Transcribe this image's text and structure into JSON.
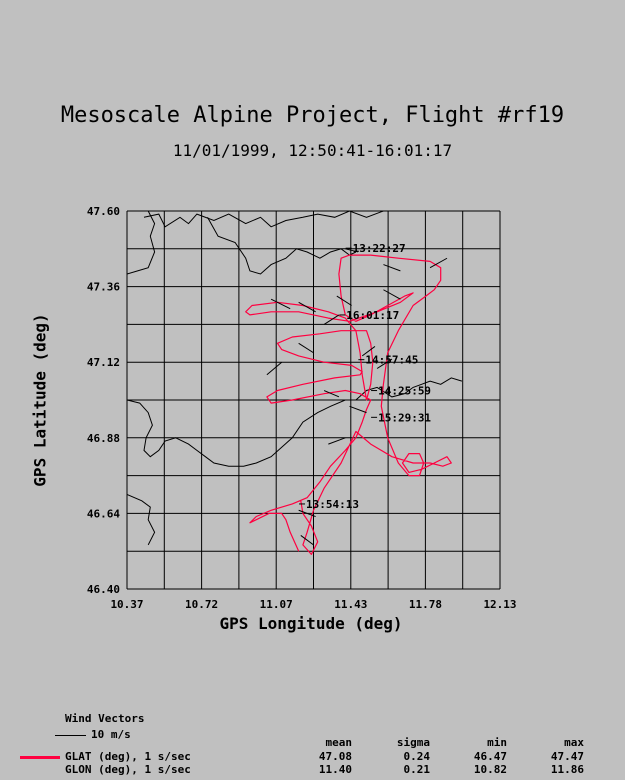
{
  "title": "Mesoscale Alpine Project, Flight #rf19",
  "subtitle": "11/01/1999, 12:50:41-16:01:17",
  "chart_data": {
    "type": "line",
    "xlabel": "GPS Longitude (deg)",
    "ylabel": "GPS Latitude (deg)",
    "xlim": [
      10.37,
      12.13
    ],
    "ylim": [
      46.4,
      47.6
    ],
    "xticks": [
      "10.37",
      "10.72",
      "11.07",
      "11.43",
      "11.78",
      "12.13"
    ],
    "yticks": [
      "46.40",
      "46.64",
      "46.88",
      "47.12",
      "47.36",
      "47.60"
    ],
    "grid": true,
    "track_color": "#ff0040",
    "track": [
      [
        11.18,
        46.52
      ],
      [
        11.14,
        46.58
      ],
      [
        11.12,
        46.62
      ],
      [
        11.1,
        46.64
      ],
      [
        11.04,
        46.64
      ],
      [
        10.98,
        46.62
      ],
      [
        10.95,
        46.61
      ],
      [
        10.98,
        46.63
      ],
      [
        11.05,
        46.65
      ],
      [
        11.15,
        46.67
      ],
      [
        11.22,
        46.69
      ],
      [
        11.28,
        46.74
      ],
      [
        11.33,
        46.79
      ],
      [
        11.4,
        46.84
      ],
      [
        11.45,
        46.88
      ],
      [
        11.48,
        46.93
      ],
      [
        11.5,
        46.97
      ],
      [
        11.52,
        47.0
      ],
      [
        11.47,
        47.02
      ],
      [
        11.4,
        47.03
      ],
      [
        11.3,
        47.02
      ],
      [
        11.15,
        47.0
      ],
      [
        11.05,
        46.99
      ],
      [
        11.03,
        47.01
      ],
      [
        11.08,
        47.03
      ],
      [
        11.2,
        47.05
      ],
      [
        11.35,
        47.07
      ],
      [
        11.47,
        47.08
      ],
      [
        11.48,
        47.09
      ],
      [
        11.43,
        47.11
      ],
      [
        11.3,
        47.12
      ],
      [
        11.18,
        47.14
      ],
      [
        11.1,
        47.16
      ],
      [
        11.08,
        47.18
      ],
      [
        11.15,
        47.2
      ],
      [
        11.28,
        47.21
      ],
      [
        11.38,
        47.22
      ],
      [
        11.45,
        47.22
      ],
      [
        11.5,
        47.22
      ],
      [
        11.52,
        47.18
      ],
      [
        11.53,
        47.12
      ],
      [
        11.52,
        47.05
      ],
      [
        11.5,
        47.0
      ],
      [
        11.48,
        47.08
      ],
      [
        11.47,
        47.15
      ],
      [
        11.45,
        47.22
      ],
      [
        11.4,
        47.26
      ],
      [
        11.32,
        47.28
      ],
      [
        11.2,
        47.3
      ],
      [
        11.08,
        47.31
      ],
      [
        10.96,
        47.3
      ],
      [
        10.93,
        47.28
      ],
      [
        10.95,
        47.27
      ],
      [
        11.05,
        47.28
      ],
      [
        11.18,
        47.28
      ],
      [
        11.32,
        47.26
      ],
      [
        11.42,
        47.25
      ],
      [
        11.55,
        47.28
      ],
      [
        11.66,
        47.31
      ],
      [
        11.72,
        47.34
      ],
      [
        11.68,
        47.33
      ],
      [
        11.6,
        47.3
      ],
      [
        11.52,
        47.27
      ],
      [
        11.45,
        47.25
      ],
      [
        11.4,
        47.27
      ],
      [
        11.38,
        47.33
      ],
      [
        11.37,
        47.4
      ],
      [
        11.38,
        47.45
      ],
      [
        11.42,
        47.46
      ],
      [
        11.52,
        47.46
      ],
      [
        11.65,
        47.45
      ],
      [
        11.8,
        47.44
      ],
      [
        11.85,
        47.42
      ],
      [
        11.85,
        47.38
      ],
      [
        11.82,
        47.35
      ],
      [
        11.78,
        47.33
      ],
      [
        11.72,
        47.3
      ],
      [
        11.65,
        47.22
      ],
      [
        11.6,
        47.15
      ],
      [
        11.58,
        47.05
      ],
      [
        11.57,
        46.98
      ],
      [
        11.6,
        46.88
      ],
      [
        11.65,
        46.8
      ],
      [
        11.7,
        46.76
      ],
      [
        11.75,
        46.76
      ],
      [
        11.77,
        46.8
      ],
      [
        11.75,
        46.83
      ],
      [
        11.7,
        46.83
      ],
      [
        11.67,
        46.8
      ],
      [
        11.7,
        46.77
      ],
      [
        11.76,
        46.78
      ],
      [
        11.82,
        46.8
      ],
      [
        11.88,
        46.82
      ],
      [
        11.9,
        46.8
      ],
      [
        11.86,
        46.79
      ],
      [
        11.8,
        46.8
      ],
      [
        11.72,
        46.8
      ],
      [
        11.62,
        46.82
      ],
      [
        11.52,
        46.86
      ],
      [
        11.45,
        46.9
      ],
      [
        11.38,
        46.8
      ],
      [
        11.3,
        46.72
      ],
      [
        11.25,
        46.65
      ],
      [
        11.22,
        46.58
      ],
      [
        11.2,
        46.54
      ],
      [
        11.24,
        46.51
      ],
      [
        11.27,
        46.55
      ],
      [
        11.24,
        46.6
      ],
      [
        11.2,
        46.64
      ],
      [
        11.19,
        46.68
      ]
    ],
    "coastline": [
      [
        [
          10.45,
          47.58
        ],
        [
          10.52,
          47.59
        ],
        [
          10.55,
          47.55
        ],
        [
          10.62,
          47.58
        ],
        [
          10.66,
          47.56
        ],
        [
          10.7,
          47.59
        ],
        [
          10.78,
          47.57
        ],
        [
          10.85,
          47.59
        ],
        [
          10.93,
          47.56
        ],
        [
          11.0,
          47.58
        ],
        [
          11.05,
          47.55
        ],
        [
          11.12,
          47.57
        ],
        [
          11.2,
          47.58
        ],
        [
          11.27,
          47.59
        ],
        [
          11.35,
          47.58
        ],
        [
          11.42,
          47.6
        ],
        [
          11.5,
          47.58
        ],
        [
          11.58,
          47.6
        ]
      ],
      [
        [
          10.47,
          47.6
        ],
        [
          10.5,
          47.56
        ],
        [
          10.48,
          47.52
        ],
        [
          10.5,
          47.47
        ],
        [
          10.47,
          47.42
        ],
        [
          10.42,
          47.41
        ],
        [
          10.37,
          47.4
        ]
      ],
      [
        [
          10.75,
          47.58
        ],
        [
          10.8,
          47.52
        ],
        [
          10.88,
          47.5
        ],
        [
          10.93,
          47.45
        ],
        [
          10.95,
          47.41
        ],
        [
          11.0,
          47.4
        ],
        [
          11.05,
          47.43
        ],
        [
          11.12,
          47.45
        ],
        [
          11.17,
          47.48
        ],
        [
          11.22,
          47.47
        ],
        [
          11.28,
          47.45
        ],
        [
          11.33,
          47.47
        ],
        [
          11.38,
          47.48
        ],
        [
          11.42,
          47.46
        ],
        [
          11.45,
          47.47
        ]
      ],
      [
        [
          10.37,
          47.0
        ],
        [
          10.43,
          46.99
        ],
        [
          10.47,
          46.96
        ],
        [
          10.49,
          46.92
        ],
        [
          10.46,
          46.88
        ],
        [
          10.45,
          46.84
        ],
        [
          10.48,
          46.82
        ],
        [
          10.52,
          46.84
        ],
        [
          10.55,
          46.87
        ],
        [
          10.6,
          46.88
        ],
        [
          10.66,
          46.86
        ],
        [
          10.7,
          46.84
        ],
        [
          10.74,
          46.82
        ],
        [
          10.78,
          46.8
        ],
        [
          10.85,
          46.79
        ],
        [
          10.92,
          46.79
        ],
        [
          10.98,
          46.8
        ],
        [
          11.05,
          46.82
        ],
        [
          11.1,
          46.85
        ],
        [
          11.15,
          46.88
        ],
        [
          11.2,
          46.93
        ],
        [
          11.27,
          46.96
        ],
        [
          11.33,
          46.98
        ],
        [
          11.4,
          47.0
        ],
        [
          11.45,
          47.0
        ],
        [
          11.5,
          47.03
        ],
        [
          11.55,
          47.04
        ],
        [
          11.62,
          47.01
        ],
        [
          11.68,
          47.02
        ],
        [
          11.72,
          47.04
        ],
        [
          11.76,
          47.05
        ],
        [
          11.8,
          47.06
        ],
        [
          11.85,
          47.05
        ],
        [
          11.9,
          47.07
        ],
        [
          11.95,
          47.06
        ]
      ],
      [
        [
          10.37,
          46.7
        ],
        [
          10.44,
          46.68
        ],
        [
          10.48,
          46.66
        ],
        [
          10.47,
          46.62
        ],
        [
          10.5,
          46.58
        ],
        [
          10.47,
          46.54
        ]
      ]
    ],
    "wind_vectors": [
      [
        [
          11.4,
          47.48
        ],
        [
          11.46,
          47.47
        ]
      ],
      [
        [
          11.58,
          47.43
        ],
        [
          11.66,
          47.41
        ]
      ],
      [
        [
          11.8,
          47.42
        ],
        [
          11.88,
          47.45
        ]
      ],
      [
        [
          11.05,
          47.32
        ],
        [
          11.14,
          47.29
        ]
      ],
      [
        [
          11.18,
          47.31
        ],
        [
          11.26,
          47.28
        ]
      ],
      [
        [
          11.3,
          47.24
        ],
        [
          11.37,
          47.27
        ]
      ],
      [
        [
          11.36,
          47.33
        ],
        [
          11.43,
          47.3
        ]
      ],
      [
        [
          11.58,
          47.35
        ],
        [
          11.66,
          47.32
        ]
      ],
      [
        [
          11.03,
          47.08
        ],
        [
          11.1,
          47.12
        ]
      ],
      [
        [
          11.18,
          47.18
        ],
        [
          11.25,
          47.15
        ]
      ],
      [
        [
          11.48,
          47.14
        ],
        [
          11.54,
          47.17
        ]
      ],
      [
        [
          11.55,
          47.1
        ],
        [
          11.62,
          47.13
        ]
      ],
      [
        [
          11.3,
          47.03
        ],
        [
          11.37,
          47.01
        ]
      ],
      [
        [
          11.42,
          46.98
        ],
        [
          11.5,
          46.96
        ]
      ],
      [
        [
          11.32,
          46.86
        ],
        [
          11.4,
          46.88
        ]
      ],
      [
        [
          11.18,
          46.65
        ],
        [
          11.26,
          46.63
        ]
      ],
      [
        [
          11.19,
          46.57
        ],
        [
          11.25,
          46.54
        ]
      ]
    ],
    "annotations": [
      {
        "text": "13:22:27",
        "lon": 11.43,
        "lat": 47.482
      },
      {
        "text": "16:01:17",
        "lon": 11.4,
        "lat": 47.27
      },
      {
        "text": "14:57:45",
        "lon": 11.49,
        "lat": 47.128
      },
      {
        "text": "14:25:59",
        "lon": 11.55,
        "lat": 47.03
      },
      {
        "text": "15:29:31",
        "lon": 11.55,
        "lat": 46.945
      },
      {
        "text": "13:54:13",
        "lon": 11.21,
        "lat": 46.67
      }
    ]
  },
  "legend": {
    "wind_title": "Wind Vectors",
    "wind_scale": "10 m/s",
    "series": [
      {
        "label": "GLAT (deg), 1 s/sec",
        "mean": "47.08",
        "sigma": "0.24",
        "min": "46.47",
        "max": "47.47"
      },
      {
        "label": "GLON (deg), 1 s/sec",
        "mean": "11.40",
        "sigma": "0.21",
        "min": "10.82",
        "max": "11.86"
      }
    ],
    "headers": {
      "mean": "mean",
      "sigma": "sigma",
      "min": "min",
      "max": "max"
    }
  }
}
